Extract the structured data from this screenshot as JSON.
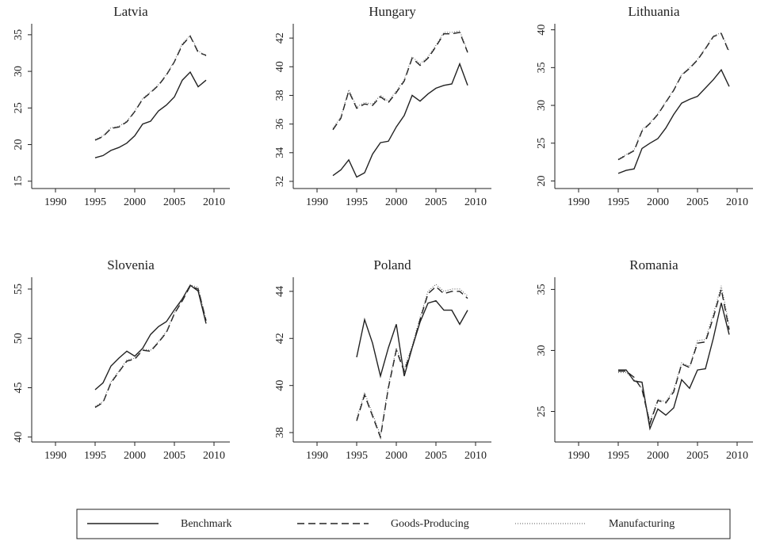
{
  "chart_data": [
    {
      "type": "line",
      "title": "Latvia",
      "xlim": [
        1987,
        2012
      ],
      "xticks": [
        1990,
        1995,
        2000,
        2005,
        2010
      ],
      "ylim": [
        14,
        36.5
      ],
      "yticks": [
        15,
        20,
        25,
        30,
        35
      ],
      "x": [
        1995,
        1996,
        1997,
        1998,
        1999,
        2000,
        2001,
        2002,
        2003,
        2004,
        2005,
        2006,
        2007,
        2008,
        2009
      ],
      "series": [
        {
          "name": "Benchmark",
          "color": "#222",
          "style": "solid",
          "values": [
            18.2,
            18.5,
            19.2,
            19.6,
            20.2,
            21.2,
            22.8,
            23.2,
            24.6,
            25.4,
            26.5,
            28.8,
            29.9,
            27.9,
            28.8
          ]
        },
        {
          "name": "Goods-Producing",
          "color": "#222",
          "style": "dashed",
          "values": [
            20.6,
            21.1,
            22.2,
            22.4,
            23.1,
            24.5,
            26.2,
            27.1,
            28.1,
            29.5,
            31.3,
            33.6,
            34.8,
            32.6,
            32.2
          ]
        },
        {
          "name": "Manufacturing",
          "color": "#555",
          "style": "dotted",
          "values": [
            20.7,
            21.2,
            22.3,
            22.5,
            23.2,
            24.6,
            26.3,
            27.2,
            28.2,
            29.6,
            31.4,
            33.8,
            34.9,
            32.8,
            32.1
          ]
        }
      ]
    },
    {
      "type": "line",
      "title": "Hungary",
      "xlim": [
        1987,
        2012
      ],
      "xticks": [
        1990,
        1995,
        2000,
        2005,
        2010
      ],
      "ylim": [
        31.5,
        43
      ],
      "yticks": [
        32,
        34,
        36,
        38,
        40,
        42
      ],
      "x": [
        1992,
        1993,
        1994,
        1995,
        1996,
        1997,
        1998,
        1999,
        2000,
        2001,
        2002,
        2003,
        2004,
        2005,
        2006,
        2007,
        2008,
        2009
      ],
      "series": [
        {
          "name": "Benchmark",
          "color": "#222",
          "style": "solid",
          "values": [
            32.4,
            32.8,
            33.5,
            32.3,
            32.6,
            33.9,
            34.7,
            34.8,
            35.8,
            36.6,
            38.0,
            37.6,
            38.1,
            38.5,
            38.7,
            38.8,
            40.2,
            38.7
          ]
        },
        {
          "name": "Goods-Producing",
          "color": "#222",
          "style": "dashed",
          "values": [
            35.6,
            36.4,
            38.3,
            37.1,
            37.4,
            37.3,
            37.9,
            37.5,
            38.2,
            39.0,
            40.6,
            40.1,
            40.6,
            41.4,
            42.3,
            42.3,
            42.4,
            41.0
          ]
        },
        {
          "name": "Manufacturing",
          "color": "#555",
          "style": "dotted",
          "values": [
            35.7,
            36.5,
            38.4,
            37.2,
            37.5,
            37.4,
            38.0,
            37.6,
            38.3,
            39.1,
            40.7,
            40.2,
            40.7,
            41.5,
            42.4,
            42.4,
            42.5,
            41.1
          ]
        }
      ]
    },
    {
      "type": "line",
      "title": "Lithuania",
      "xlim": [
        1987,
        2012
      ],
      "xticks": [
        1990,
        1995,
        2000,
        2005,
        2010
      ],
      "ylim": [
        19,
        40.8
      ],
      "yticks": [
        20,
        25,
        30,
        35,
        40
      ],
      "x": [
        1995,
        1996,
        1997,
        1998,
        1999,
        2000,
        2001,
        2002,
        2003,
        2004,
        2005,
        2006,
        2007,
        2008,
        2009
      ],
      "series": [
        {
          "name": "Benchmark",
          "color": "#222",
          "style": "solid",
          "values": [
            21.0,
            21.4,
            21.6,
            24.3,
            25.0,
            25.6,
            27.0,
            28.8,
            30.3,
            30.8,
            31.2,
            32.3,
            33.4,
            34.7,
            32.5
          ]
        },
        {
          "name": "Goods-Producing",
          "color": "#222",
          "style": "dashed",
          "values": [
            22.8,
            23.4,
            24.0,
            26.6,
            27.6,
            28.8,
            30.4,
            32.0,
            34.0,
            34.9,
            36.0,
            37.5,
            39.1,
            39.5,
            37.0
          ]
        },
        {
          "name": "Manufacturing",
          "color": "#555",
          "style": "dotted",
          "values": [
            22.9,
            23.5,
            24.1,
            26.8,
            27.7,
            28.9,
            30.5,
            32.1,
            34.1,
            35.0,
            36.1,
            37.6,
            39.2,
            39.6,
            37.2
          ]
        }
      ]
    },
    {
      "type": "line",
      "title": "Slovenia",
      "xlim": [
        1987,
        2012
      ],
      "xticks": [
        1990,
        1995,
        2000,
        2005,
        2010
      ],
      "ylim": [
        39.5,
        56.2
      ],
      "yticks": [
        40,
        45,
        50,
        55
      ],
      "x": [
        1995,
        1996,
        1997,
        1998,
        1999,
        2000,
        2001,
        2002,
        2003,
        2004,
        2005,
        2006,
        2007,
        2008,
        2009
      ],
      "series": [
        {
          "name": "Benchmark",
          "color": "#222",
          "style": "solid",
          "values": [
            44.8,
            45.5,
            47.2,
            48.0,
            48.7,
            48.2,
            49.0,
            50.4,
            51.2,
            51.7,
            52.9,
            54.0,
            55.4,
            54.8,
            51.5
          ]
        },
        {
          "name": "Goods-Producing",
          "color": "#222",
          "style": "dashed",
          "values": [
            43.0,
            43.5,
            45.5,
            46.6,
            47.7,
            47.9,
            48.8,
            48.7,
            49.6,
            50.6,
            52.5,
            53.8,
            55.3,
            55.0,
            51.8
          ]
        },
        {
          "name": "Manufacturing",
          "color": "#555",
          "style": "dotted",
          "values": [
            43.1,
            43.6,
            45.6,
            46.7,
            47.8,
            48.0,
            48.9,
            48.8,
            49.7,
            50.7,
            52.6,
            53.9,
            55.4,
            55.2,
            51.9
          ]
        }
      ]
    },
    {
      "type": "line",
      "title": "Poland",
      "xlim": [
        1987,
        2012
      ],
      "xticks": [
        1990,
        1995,
        2000,
        2005,
        2010
      ],
      "ylim": [
        37.6,
        44.6
      ],
      "yticks": [
        38,
        40,
        42,
        44
      ],
      "x": [
        1995,
        1996,
        1997,
        1998,
        1999,
        2000,
        2001,
        2002,
        2003,
        2004,
        2005,
        2006,
        2007,
        2008,
        2009
      ],
      "series": [
        {
          "name": "Benchmark",
          "color": "#222",
          "style": "solid",
          "values": [
            41.2,
            42.8,
            41.8,
            40.4,
            41.6,
            42.6,
            40.4,
            41.6,
            42.7,
            43.5,
            43.6,
            43.2,
            43.2,
            42.6,
            43.2
          ]
        },
        {
          "name": "Goods-Producing",
          "color": "#222",
          "style": "dashed",
          "values": [
            38.5,
            39.6,
            38.7,
            37.8,
            39.9,
            41.5,
            40.6,
            41.6,
            42.8,
            43.9,
            44.2,
            43.9,
            44.0,
            44.0,
            43.7
          ]
        },
        {
          "name": "Manufacturing",
          "color": "#555",
          "style": "dotted",
          "values": [
            38.6,
            39.7,
            38.8,
            37.9,
            40.0,
            41.6,
            40.7,
            41.7,
            42.9,
            44.0,
            44.3,
            44.0,
            44.1,
            44.1,
            43.8
          ]
        }
      ]
    },
    {
      "type": "line",
      "title": "Romania",
      "xlim": [
        1987,
        2012
      ],
      "xticks": [
        1990,
        1995,
        2000,
        2005,
        2010
      ],
      "ylim": [
        22.5,
        36
      ],
      "yticks": [
        25,
        30,
        35
      ],
      "x": [
        1995,
        1996,
        1997,
        1998,
        1999,
        2000,
        2001,
        2002,
        2003,
        2004,
        2005,
        2006,
        2007,
        2008,
        2009
      ],
      "series": [
        {
          "name": "Benchmark",
          "color": "#222",
          "style": "solid",
          "values": [
            28.4,
            28.4,
            27.5,
            27.4,
            23.6,
            25.2,
            24.7,
            25.3,
            27.6,
            26.9,
            28.4,
            28.5,
            31.0,
            33.9,
            31.3
          ]
        },
        {
          "name": "Goods-Producing",
          "color": "#222",
          "style": "dashed",
          "values": [
            28.3,
            28.3,
            27.8,
            26.8,
            24.0,
            25.9,
            25.7,
            26.6,
            28.9,
            28.6,
            30.6,
            30.7,
            32.7,
            35.0,
            31.7
          ]
        },
        {
          "name": "Manufacturing",
          "color": "#555",
          "style": "dotted",
          "values": [
            28.2,
            28.2,
            27.6,
            26.9,
            24.2,
            26.0,
            25.8,
            26.8,
            29.0,
            28.7,
            30.8,
            30.9,
            33.0,
            35.3,
            32.1
          ]
        }
      ]
    }
  ]
}
